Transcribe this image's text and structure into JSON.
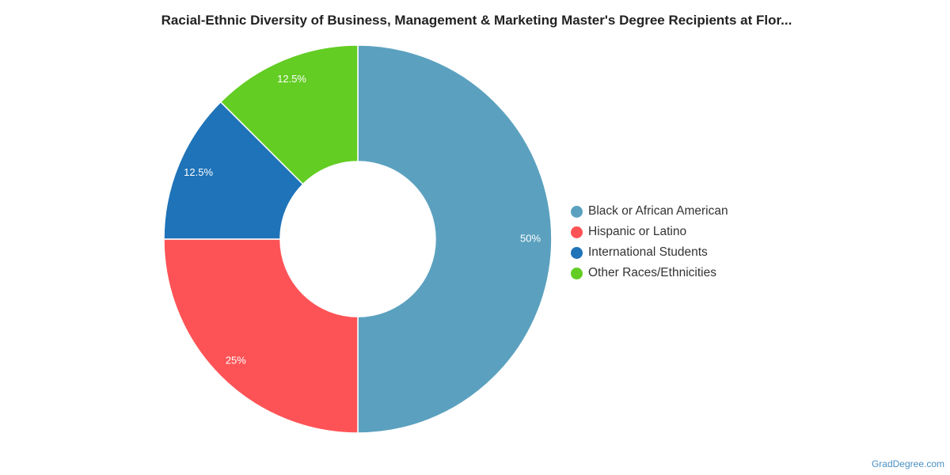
{
  "colors": {
    "background": "#ffffff",
    "title": "#222222",
    "legend_text": "#333333",
    "slice_label": "#ffffff",
    "watermark": "#4a8fc2"
  },
  "chart_data": {
    "type": "pie",
    "variant": "donut",
    "title": "Racial-Ethnic Diversity of Business, Management & Marketing Master's Degree Recipients at Flor...",
    "categories": [
      "Black or African American",
      "Hispanic or Latino",
      "International Students",
      "Other Races/Ethnicities"
    ],
    "values": [
      50,
      25,
      12.5,
      12.5
    ],
    "labels": [
      "50%",
      "25%",
      "12.5%",
      "12.5%"
    ],
    "colors": [
      "#5ba1bf",
      "#fe5356",
      "#1f73b8",
      "#63cd23"
    ],
    "unit": "%",
    "legend_position": "right",
    "start": "top, clockwise"
  },
  "legend": {
    "items": [
      {
        "label": "Black or African American",
        "color": "#5ba1bf"
      },
      {
        "label": "Hispanic or Latino",
        "color": "#fe5356"
      },
      {
        "label": "International Students",
        "color": "#1f73b8"
      },
      {
        "label": "Other Races/Ethnicities",
        "color": "#63cd23"
      }
    ]
  },
  "footer": {
    "watermark": "GradDegree.com"
  }
}
